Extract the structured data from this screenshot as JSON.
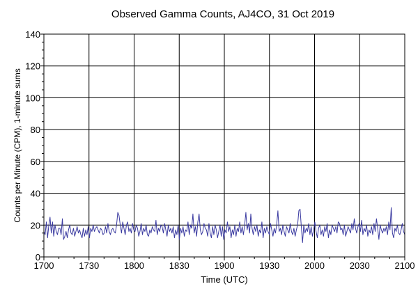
{
  "chart_data": {
    "type": "line",
    "title": "Observed Gamma Counts, AJ4CO, 31 Oct 2019",
    "xlabel": "Time (UTC)",
    "ylabel": "Counts per Minute (CPM), 1-minute sums",
    "x_ticks": [
      "1700",
      "1730",
      "1800",
      "1830",
      "1900",
      "1930",
      "2000",
      "2030",
      "2100"
    ],
    "x_range_minutes": [
      0,
      240
    ],
    "ylim": [
      0,
      140
    ],
    "y_ticks": [
      0,
      20,
      40,
      60,
      80,
      100,
      120,
      140
    ],
    "grid": true,
    "legend": "none",
    "series_color": "#3a3aa0",
    "series": [
      {
        "values": [
          16,
          14,
          22,
          12,
          20,
          25,
          15,
          22,
          13,
          20,
          16,
          14,
          18,
          18,
          14,
          24,
          11,
          13,
          16,
          12,
          17,
          20,
          15,
          14,
          18,
          13,
          16,
          19,
          15,
          17,
          14,
          12,
          18,
          13,
          17,
          14,
          19,
          12,
          18,
          16,
          20,
          16,
          18,
          19,
          17,
          15,
          18,
          17,
          14,
          15,
          19,
          15,
          21,
          16,
          14,
          17,
          18,
          16,
          15,
          20,
          28,
          26,
          20,
          15,
          22,
          18,
          14,
          20,
          22,
          16,
          18,
          15,
          21,
          17,
          16,
          20,
          18,
          13,
          16,
          21,
          14,
          18,
          16,
          20,
          14,
          13,
          17,
          15,
          19,
          17,
          16,
          23,
          14,
          18,
          16,
          20,
          19,
          15,
          21,
          17,
          13,
          20,
          16,
          18,
          15,
          19,
          12,
          17,
          14,
          20,
          11,
          18,
          15,
          19,
          13,
          17,
          16,
          22,
          14,
          20,
          18,
          27,
          15,
          19,
          13,
          22,
          27,
          17,
          14,
          16,
          21,
          18,
          17,
          13,
          21,
          15,
          12,
          19,
          14,
          20,
          17,
          12,
          16,
          20,
          13,
          19,
          11,
          17,
          15,
          22,
          16,
          19,
          12,
          17,
          14,
          20,
          13,
          18,
          16,
          22,
          15,
          19,
          14,
          20,
          28,
          17,
          21,
          15,
          27,
          18,
          14,
          19,
          16,
          20,
          13,
          17,
          15,
          22,
          12,
          18,
          15,
          19,
          16,
          14,
          21,
          17,
          13,
          18,
          15,
          20,
          29,
          16,
          18,
          14,
          20,
          16,
          13,
          19,
          17,
          15,
          21,
          16,
          14,
          18,
          13,
          17,
          20,
          29,
          30,
          19,
          9,
          20,
          15,
          18,
          16,
          21,
          14,
          19,
          13,
          17,
          22,
          16,
          12,
          18,
          20,
          14,
          17,
          13,
          19,
          16,
          21,
          12,
          17,
          14,
          20,
          18,
          16,
          19,
          15,
          22,
          21,
          17,
          18,
          14,
          20,
          13,
          16,
          19,
          17,
          15,
          21,
          17,
          24,
          18,
          15,
          19,
          21,
          16,
          23,
          14,
          18,
          16,
          20,
          13,
          17,
          15,
          19,
          14,
          21,
          16,
          24,
          18,
          11,
          20,
          17,
          15,
          18,
          16,
          19,
          14,
          22,
          17,
          31,
          15,
          12,
          18,
          16,
          20,
          15,
          14,
          17,
          21,
          16,
          14
        ]
      }
    ]
  }
}
